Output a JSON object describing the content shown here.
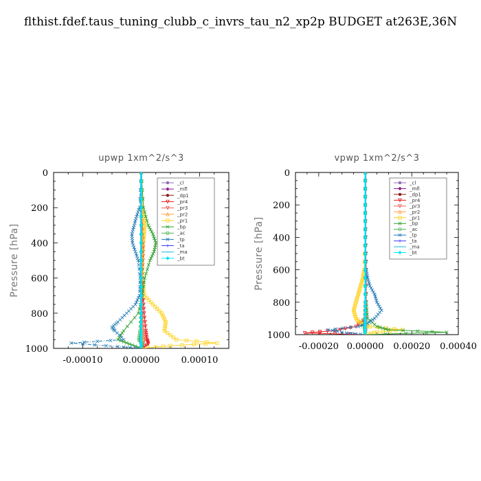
{
  "title": "flthist.fdef.taus_tuning_clubb_c_invrs_tau_n2_xp2p  BUDGET at263E,36N",
  "chart_data": [
    {
      "type": "line",
      "subtitle": "upwp   1xm^2/s^3",
      "ylabel": "Pressure [hPa]",
      "xlim": [
        -0.00015,
        0.00015
      ],
      "ylim": [
        1000,
        0
      ],
      "xticks": [
        -0.0001,
        0,
        0.0001
      ],
      "xtick_labels": [
        "-0.00010",
        "0.00000",
        "0.00010"
      ],
      "yticks": [
        0,
        200,
        400,
        600,
        800,
        1000
      ],
      "ytick_labels": [
        "0",
        "200",
        "400",
        "600",
        "800",
        "1000"
      ],
      "legend": "top-right",
      "series": [
        {
          "name": "_cl",
          "color": "#8c6bb1",
          "p": [
            0,
            200,
            400,
            600,
            800,
            900,
            950,
            1000
          ],
          "v": [
            0,
            0,
            0,
            0,
            0,
            0,
            0,
            0
          ]
        },
        {
          "name": "_mfl",
          "color": "#8b1a8b",
          "p": [
            0,
            200,
            400,
            600,
            800,
            900,
            950,
            1000
          ],
          "v": [
            0,
            0,
            0,
            0,
            0,
            0,
            0,
            0
          ]
        },
        {
          "name": "_dp1",
          "color": "#8b1a1a",
          "p": [
            0,
            200,
            400,
            600,
            800,
            900,
            950,
            1000
          ],
          "v": [
            0,
            0,
            0,
            0,
            0,
            0,
            0,
            0
          ]
        },
        {
          "name": "_pr4",
          "color": "#e41a1c",
          "p": [
            0,
            200,
            300,
            400,
            500,
            600,
            700,
            800,
            900,
            950,
            975,
            1000
          ],
          "v": [
            0,
            0,
            2e-06,
            4e-06,
            3e-06,
            2e-06,
            3e-06,
            5e-06,
            8e-06,
            1e-05,
            1.2e-05,
            0
          ]
        },
        {
          "name": "_pr3",
          "color": "#f05a5a",
          "p": [
            0,
            200,
            400,
            600,
            800,
            900,
            950,
            1000
          ],
          "v": [
            0,
            1e-06,
            2e-06,
            1e-06,
            2e-06,
            4e-06,
            6e-06,
            0
          ]
        },
        {
          "name": "_pr2",
          "color": "#ff9e40",
          "p": [
            0,
            200,
            400,
            600,
            800,
            900,
            950,
            1000
          ],
          "v": [
            0,
            0,
            1e-06,
            0,
            1e-06,
            2e-06,
            3e-06,
            0
          ]
        },
        {
          "name": "_pr1",
          "color": "#ffd21f",
          "p": [
            0,
            200,
            250,
            300,
            350,
            400,
            500,
            600,
            700,
            750,
            800,
            850,
            900,
            950,
            970,
            985,
            1000
          ],
          "v": [
            0,
            2e-06,
            4e-06,
            6e-06,
            5e-06,
            3e-06,
            2e-06,
            2e-06,
            6e-06,
            2e-05,
            3.5e-05,
            4.2e-05,
            4e-05,
            6e-05,
            0.00013,
            5e-05,
            0
          ]
        },
        {
          "name": "_bp",
          "color": "#2ca02c",
          "p": [
            0,
            200,
            300,
            350,
            400,
            450,
            500,
            600,
            700,
            800,
            900,
            950,
            975,
            1000
          ],
          "v": [
            0,
            4e-06,
            1.2e-05,
            2e-05,
            2.5e-05,
            2.2e-05,
            1.5e-05,
            6e-06,
            2e-06,
            -5e-06,
            -3e-05,
            -4e-05,
            -2e-05,
            0
          ]
        },
        {
          "name": "_ac",
          "color": "#4caf50",
          "p": [
            0,
            200,
            400,
            600,
            800,
            900,
            950,
            975,
            1000
          ],
          "v": [
            0,
            0,
            0,
            0,
            0,
            -2e-06,
            -4e-06,
            2e-06,
            0
          ]
        },
        {
          "name": "_tp",
          "color": "#1f78b4",
          "p": [
            0,
            200,
            250,
            300,
            350,
            400,
            450,
            500,
            600,
            700,
            750,
            800,
            850,
            880,
            900,
            950,
            970,
            990,
            1000
          ],
          "v": [
            0,
            -3e-06,
            -8e-06,
            -1.2e-05,
            -1.6e-05,
            -1.5e-05,
            -1e-05,
            -5e-06,
            -2e-06,
            -3e-06,
            -1e-05,
            -2.5e-05,
            -4e-05,
            -5e-05,
            -4.5e-05,
            -3e-05,
            -0.00012,
            -4e-05,
            0
          ]
        },
        {
          "name": "_ta",
          "color": "#3b3bff",
          "p": [
            0,
            200,
            400,
            600,
            800,
            900,
            950,
            1000
          ],
          "v": [
            0,
            0,
            0,
            0,
            0,
            0,
            0,
            0
          ]
        },
        {
          "name": "_ma",
          "color": "#17b8d8",
          "p": [
            0,
            200,
            400,
            600,
            800,
            900,
            950,
            1000
          ],
          "v": [
            0,
            0,
            0,
            0,
            0,
            0,
            0,
            0
          ]
        },
        {
          "name": "_bt",
          "color": "#00e5ff",
          "p": [
            0,
            200,
            400,
            600,
            800,
            900,
            950,
            1000
          ],
          "v": [
            0,
            0,
            0,
            0,
            0,
            0,
            0,
            0
          ]
        }
      ]
    },
    {
      "type": "line",
      "subtitle": "vpwp   1xm^2/s^3",
      "ylabel": "Pressure [hPa]",
      "xlim": [
        -0.0003,
        0.0004
      ],
      "ylim": [
        1000,
        0
      ],
      "xticks": [
        -0.0002,
        0,
        0.0002,
        0.0004
      ],
      "xtick_labels": [
        "-0.00020",
        "0.00000",
        "0.00020",
        "0.00040"
      ],
      "yticks": [
        0,
        200,
        400,
        600,
        800,
        1000
      ],
      "ytick_labels": [
        "0",
        "200",
        "400",
        "600",
        "800",
        "1000"
      ],
      "legend": "top-right",
      "series": [
        {
          "name": "_cl",
          "color": "#8c6bb1",
          "p": [
            0,
            200,
            400,
            600,
            800,
            900,
            950,
            1000
          ],
          "v": [
            0,
            0,
            0,
            0,
            0,
            0,
            0,
            0
          ]
        },
        {
          "name": "_mfl",
          "color": "#8b1a8b",
          "p": [
            0,
            200,
            400,
            600,
            800,
            900,
            950,
            1000
          ],
          "v": [
            0,
            0,
            0,
            0,
            0,
            0,
            0,
            0
          ]
        },
        {
          "name": "_dp1",
          "color": "#8b1a1a",
          "p": [
            0,
            200,
            400,
            600,
            800,
            900,
            950,
            1000
          ],
          "v": [
            0,
            0,
            0,
            0,
            0,
            0,
            0,
            0
          ]
        },
        {
          "name": "_pr4",
          "color": "#e41a1c",
          "p": [
            0,
            200,
            400,
            600,
            800,
            900,
            950,
            975,
            990,
            1000
          ],
          "v": [
            0,
            0,
            2e-06,
            4e-06,
            4e-06,
            2e-06,
            -4e-05,
            -0.00013,
            -0.00026,
            0
          ]
        },
        {
          "name": "_pr3",
          "color": "#f05a5a",
          "p": [
            0,
            200,
            400,
            600,
            800,
            900,
            950,
            1000
          ],
          "v": [
            0,
            0,
            0,
            1e-06,
            2e-06,
            2e-06,
            4e-06,
            0
          ]
        },
        {
          "name": "_pr2",
          "color": "#ff9e40",
          "p": [
            0,
            200,
            400,
            600,
            800,
            900,
            950,
            1000
          ],
          "v": [
            0,
            0,
            0,
            0,
            1e-06,
            1e-06,
            2e-06,
            0
          ]
        },
        {
          "name": "_pr1",
          "color": "#ffd21f",
          "p": [
            0,
            200,
            400,
            600,
            650,
            700,
            750,
            800,
            850,
            900,
            930,
            950,
            970,
            985,
            1000
          ],
          "v": [
            0,
            0,
            0,
            -5e-06,
            -1e-05,
            -2e-05,
            -3e-05,
            -4e-05,
            -5e-05,
            -4e-05,
            -2e-05,
            2e-05,
            0.00016,
            5e-05,
            0
          ]
        },
        {
          "name": "_bp",
          "color": "#2ca02c",
          "p": [
            0,
            200,
            400,
            600,
            800,
            900,
            950,
            970,
            985,
            1000
          ],
          "v": [
            0,
            0,
            0,
            0,
            4e-06,
            1e-05,
            5e-05,
            0.0001,
            0.00035,
            0
          ]
        },
        {
          "name": "_ac",
          "color": "#4caf50",
          "p": [
            0,
            200,
            400,
            600,
            800,
            900,
            950,
            1000
          ],
          "v": [
            0,
            0,
            0,
            0,
            0,
            -2e-06,
            -4e-06,
            0
          ]
        },
        {
          "name": "_tp",
          "color": "#1f78b4",
          "p": [
            0,
            200,
            400,
            600,
            650,
            700,
            750,
            800,
            850,
            900,
            930,
            950,
            970,
            990,
            1000
          ],
          "v": [
            0,
            0,
            0,
            4e-06,
            1e-05,
            2e-05,
            4e-05,
            5e-05,
            7e-05,
            4e-05,
            1e-05,
            -3e-05,
            -0.00016,
            -8e-05,
            0
          ]
        },
        {
          "name": "_ta",
          "color": "#3b3bff",
          "p": [
            0,
            200,
            400,
            600,
            800,
            900,
            950,
            1000
          ],
          "v": [
            0,
            0,
            0,
            0,
            0,
            0,
            0,
            0
          ]
        },
        {
          "name": "_ma",
          "color": "#17b8d8",
          "p": [
            0,
            200,
            400,
            600,
            800,
            900,
            950,
            1000
          ],
          "v": [
            0,
            0,
            0,
            0,
            0,
            0,
            0,
            0
          ]
        },
        {
          "name": "_bt",
          "color": "#00e5ff",
          "p": [
            0,
            200,
            400,
            600,
            800,
            900,
            950,
            1000
          ],
          "v": [
            0,
            0,
            0,
            0,
            0,
            0,
            0,
            0
          ]
        }
      ]
    }
  ]
}
